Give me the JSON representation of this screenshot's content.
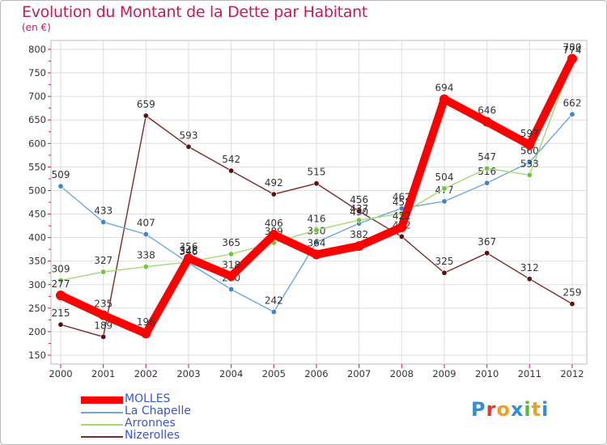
{
  "title": "Evolution du Montant de la Dette par Habitant",
  "unit": "(en €)",
  "logo_text": "Proxiti",
  "colors": {
    "title": "#c8185c",
    "grid": "#cccccc",
    "axis": "#999999"
  },
  "chart_data": {
    "type": "line",
    "x": [
      "2000",
      "2001",
      "2002",
      "2003",
      "2004",
      "2005",
      "2006",
      "2007",
      "2008",
      "2009",
      "2010",
      "2011",
      "2012"
    ],
    "ylim": [
      150,
      800
    ],
    "yticks": [
      150,
      200,
      250,
      300,
      350,
      400,
      450,
      500,
      550,
      600,
      650,
      700,
      750,
      800
    ],
    "grid": true,
    "legend_position": "bottom-left",
    "series": [
      {
        "name": "Nizerolles",
        "color": "#7b2a2a",
        "marker": "#5c1010",
        "width": 1.4,
        "values": [
          215,
          189,
          659,
          593,
          542,
          492,
          515,
          456,
          402,
          325,
          367,
          312,
          259
        ],
        "labels": [
          "215",
          "189",
          "659",
          "593",
          "542",
          "492",
          "515",
          "456",
          "402",
          "325",
          "367",
          "312",
          "259"
        ]
      },
      {
        "name": "La Chapelle",
        "color": "#6da8d8",
        "marker": "#3f86c8",
        "width": 1.4,
        "values": [
          509,
          433,
          407,
          346,
          290,
          242,
          390,
          430,
          462,
          477,
          516,
          560,
          662
        ],
        "labels": [
          "509",
          "433",
          "407",
          "346",
          "290",
          "242",
          "390",
          "430",
          "462",
          "477",
          "516",
          "560",
          "662"
        ]
      },
      {
        "name": "Arronnes",
        "color": "#9fdc6f",
        "marker": "#6cc83a",
        "width": 1.4,
        "values": [
          309,
          327,
          338,
          348,
          365,
          389,
          416,
          437,
          451,
          504,
          547,
          533,
          774
        ],
        "labels": [
          "309",
          "327",
          "338",
          "348",
          "365",
          "389",
          "416",
          "437",
          "451",
          "504",
          "547",
          "533",
          "774"
        ]
      },
      {
        "name": "MOLLES",
        "color": "#ff0000",
        "marker": "#ff0000",
        "width": 10,
        "values": [
          277,
          235,
          196,
          356,
          318,
          406,
          364,
          382,
          422,
          694,
          646,
          597,
          780
        ],
        "labels": [
          "277",
          "235",
          "196",
          "356",
          "318",
          "406",
          "364",
          "382",
          "422",
          "694",
          "646",
          "597",
          "780"
        ]
      }
    ],
    "legend_order": [
      "MOLLES",
      "La Chapelle",
      "Arronnes",
      "Nizerolles"
    ]
  }
}
